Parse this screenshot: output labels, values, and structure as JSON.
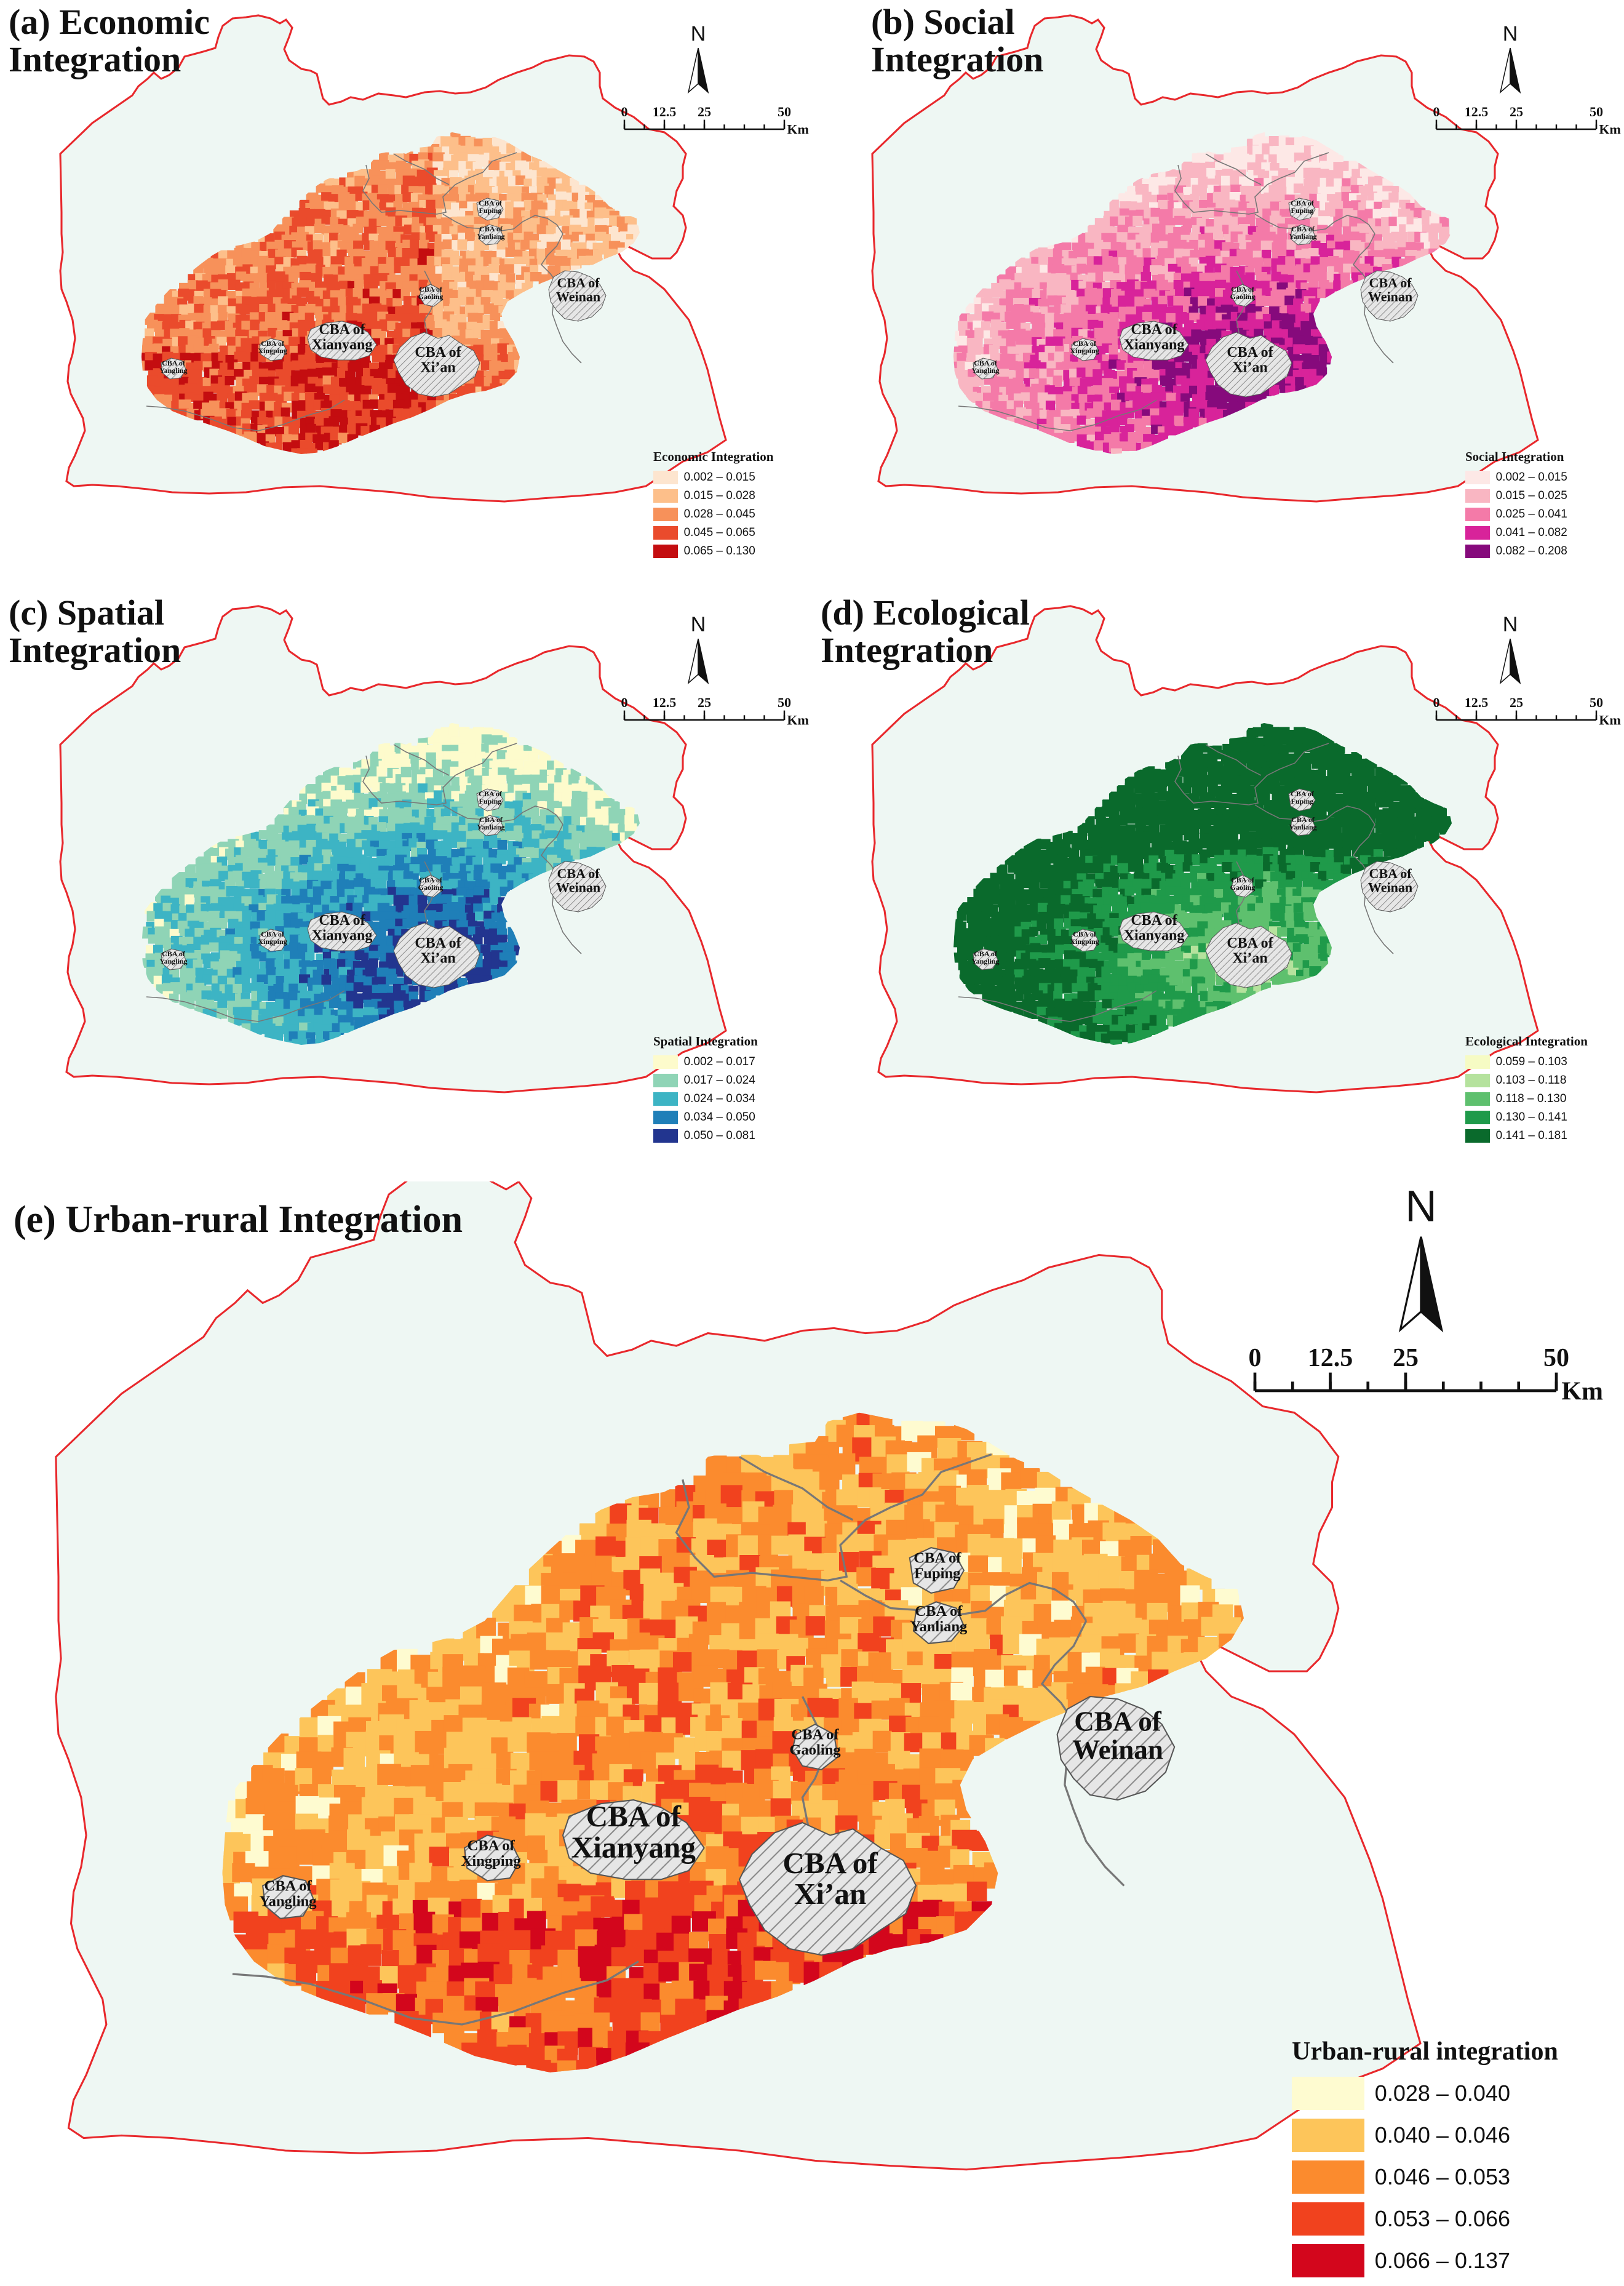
{
  "panels": [
    {
      "id": "a",
      "title": "(a) Economic\nIntegration",
      "legend_title": "Economic Integration",
      "classes": [
        {
          "range": "0.002 – 0.015",
          "color": "#fde5cf"
        },
        {
          "range": "0.015 – 0.028",
          "color": "#fdbf8a"
        },
        {
          "range": "0.028 – 0.045",
          "color": "#f7915a"
        },
        {
          "range": "0.045 – 0.065",
          "color": "#ea4b2c"
        },
        {
          "range": "0.065 – 0.130",
          "color": "#c40d10"
        }
      ]
    },
    {
      "id": "b",
      "title": "(b) Social\n      Integration",
      "legend_title": "Social Integration",
      "classes": [
        {
          "range": "0.002 – 0.015",
          "color": "#fde8e6"
        },
        {
          "range": "0.015 – 0.025",
          "color": "#f9b6c2"
        },
        {
          "range": "0.025 – 0.041",
          "color": "#f47aa8"
        },
        {
          "range": "0.041 – 0.082",
          "color": "#d8239a"
        },
        {
          "range": "0.082 – 0.208",
          "color": "#860a7c"
        }
      ]
    },
    {
      "id": "c",
      "title": "(c) Spatial\n      Integration",
      "legend_title": "Spatial Integration",
      "classes": [
        {
          "range": "0.002 – 0.017",
          "color": "#fdfbcc"
        },
        {
          "range": "0.017 – 0.024",
          "color": "#8fd4b6"
        },
        {
          "range": "0.024 – 0.034",
          "color": "#3db4c4"
        },
        {
          "range": "0.034 – 0.050",
          "color": "#1f7fb8"
        },
        {
          "range": "0.050 – 0.081",
          "color": "#22358f"
        }
      ]
    },
    {
      "id": "d",
      "title": "(d) Ecological\n      Integration",
      "legend_title": "Ecological Integration",
      "classes": [
        {
          "range": "0.059 – 0.103",
          "color": "#f6fbc4"
        },
        {
          "range": "0.103 – 0.118",
          "color": "#b5e29d"
        },
        {
          "range": "0.118 – 0.130",
          "color": "#5ec06e"
        },
        {
          "range": "0.130 – 0.141",
          "color": "#1f9a4a"
        },
        {
          "range": "0.141 – 0.181",
          "color": "#0a6a2c"
        }
      ]
    },
    {
      "id": "e",
      "title": "(e) Urban-rural Integration",
      "legend_title": "Urban-rural integration",
      "classes": [
        {
          "range": "0.028 – 0.040",
          "color": "#fefbd0"
        },
        {
          "range": "0.040 – 0.046",
          "color": "#fdc55a"
        },
        {
          "range": "0.046 – 0.053",
          "color": "#fb8b2e"
        },
        {
          "range": "0.053 – 0.066",
          "color": "#f1421e"
        },
        {
          "range": "0.066 – 0.137",
          "color": "#d3061c"
        }
      ]
    }
  ],
  "north_label": "N",
  "scale": {
    "ticks": [
      "0",
      "12.5",
      "25",
      "50"
    ],
    "unit": "Km"
  },
  "cba_labels": {
    "xian": "CBA of\nXi’an",
    "xianyang": "CBA of\nXianyang",
    "weinan": "CBA of\nWeinan",
    "gaoling": "CBA of\nGaoling",
    "fuping": "CBA of\nFuping",
    "yanliang": "CBA of\nYanliang",
    "xingping": "CBA of\nXingping",
    "yangling": "CBA of\nYangling"
  },
  "colors": {
    "region_fill": "#eef7f3",
    "region_border": "#e8282c",
    "district_border": "#777777",
    "cba_fill": "#e6e6e6",
    "cba_hatch": "#8a8a8a"
  }
}
